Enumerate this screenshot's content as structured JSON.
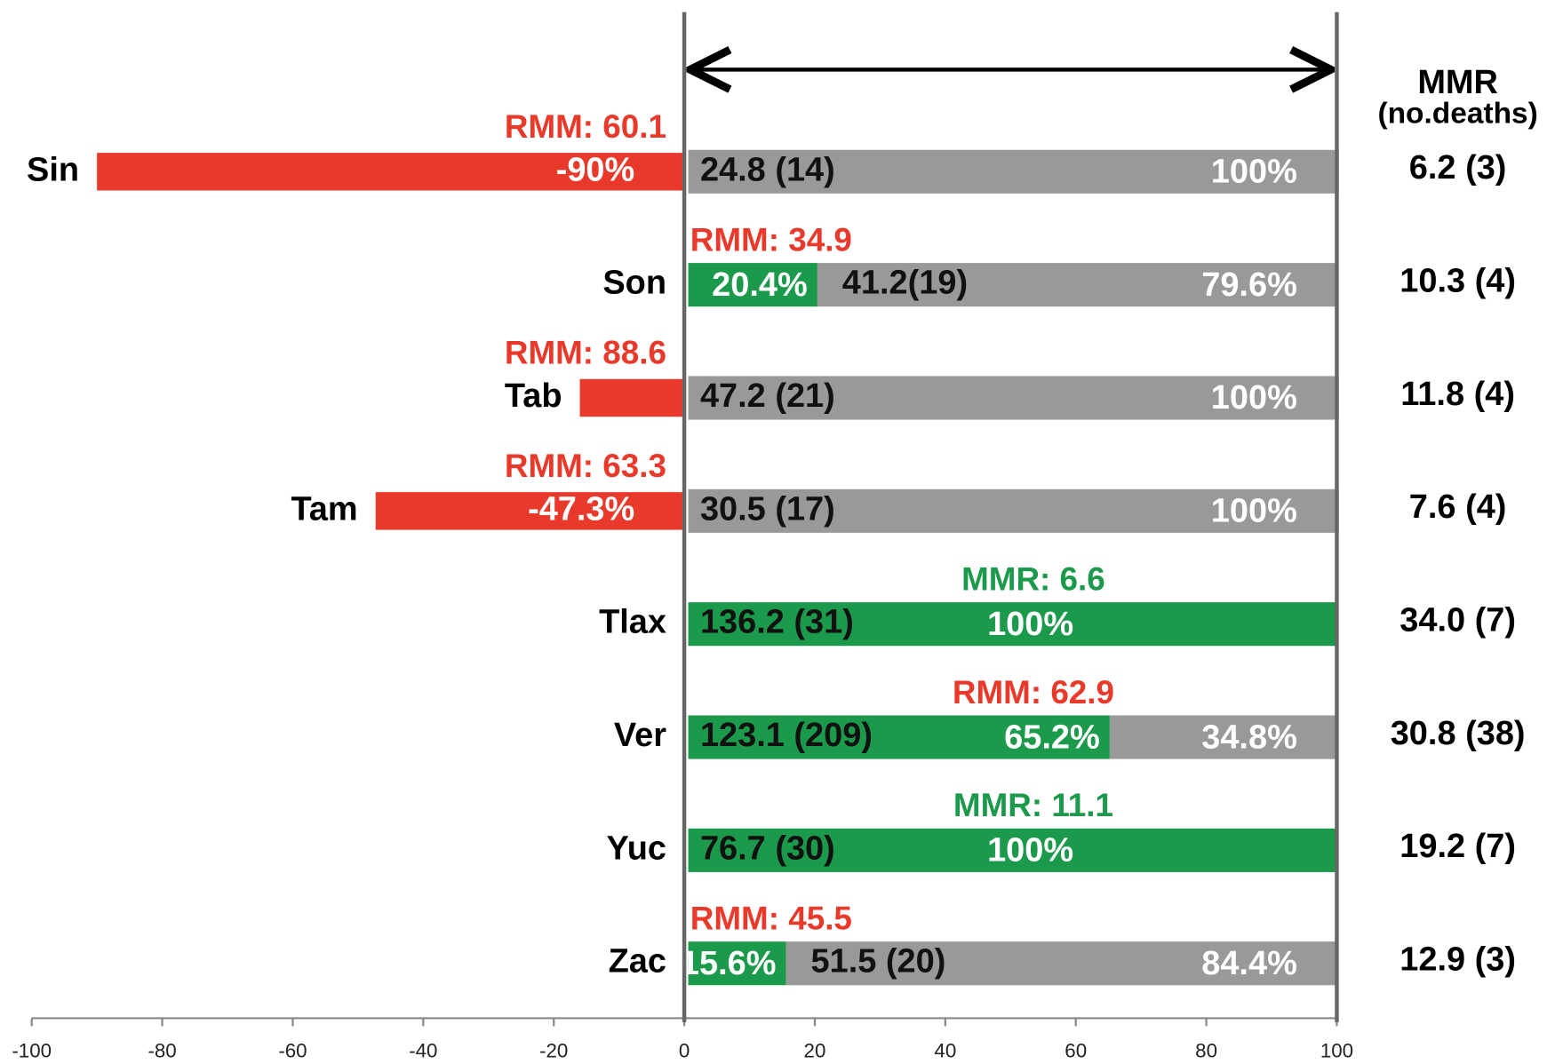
{
  "chart_data": {
    "type": "bar",
    "orientation": "horizontal",
    "stacked": true,
    "categories": [
      "Sin",
      "Son",
      "Tab",
      "Tam",
      "Tlax",
      "Ver",
      "Yuc",
      "Zac"
    ],
    "series": [
      {
        "color": "#e8392a",
        "values": [
          -90,
          null,
          -16,
          -47.3,
          null,
          null,
          null,
          null
        ],
        "value_labels": [
          "-90%",
          null,
          null,
          "-47.3%",
          null,
          null,
          null,
          null
        ]
      },
      {
        "color": "#1c9a4b",
        "values": [
          null,
          20.4,
          null,
          null,
          100,
          65.2,
          100,
          15.6
        ],
        "value_labels": [
          null,
          "20.4%",
          null,
          null,
          "100%",
          "65.2%",
          "100%",
          "15.6%"
        ]
      },
      {
        "color": "#999999",
        "values": [
          100,
          79.6,
          100,
          100,
          null,
          34.8,
          null,
          84.4
        ],
        "value_labels": [
          "100%",
          "79.6%",
          "100%",
          "100%",
          null,
          "34.8%",
          null,
          "84.4%"
        ]
      }
    ],
    "annotations": [
      "RMM: 60.1",
      "RMM: 34.9",
      "RMM: 88.6",
      "RMM: 63.3",
      "MMR: 6.6",
      "RMM: 62.9",
      "MMR: 11.1",
      "RMM: 45.5"
    ],
    "annotation_colors": [
      "#e8392a",
      "#e8392a",
      "#e8392a",
      "#e8392a",
      "#1c9a4b",
      "#e8392a",
      "#1c9a4b",
      "#e8392a"
    ],
    "inner_labels": [
      "24.8 (14)",
      "41.2(19)",
      "47.2 (21)",
      "30.5 (17)",
      "136.2 (31)",
      "123.1 (209)",
      "76.7 (30)",
      "51.5 (20)"
    ],
    "right_header": [
      "MMR",
      "(no.deaths)"
    ],
    "right_labels": [
      "6.2 (3)",
      "10.3 (4)",
      "11.8 (4)",
      "7.6 (4)",
      "34.0 (7)",
      "30.8 (38)",
      "19.2 (7)",
      "12.9 (3)"
    ],
    "xlim": [
      -100,
      100
    ],
    "xticks": [
      -100,
      -80,
      -60,
      -40,
      -20,
      0,
      20,
      40,
      60,
      80,
      100
    ]
  }
}
